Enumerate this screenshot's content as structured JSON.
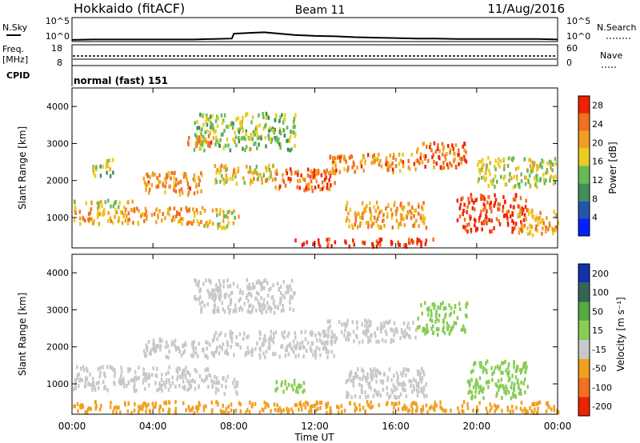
{
  "header": {
    "station": "Hokkaido (fitACF)",
    "beam": "Beam 11",
    "date": "11/Aug/2016"
  },
  "side_labels": {
    "nsky": "N.Sky",
    "freq_line1": "Freq.",
    "freq_line2": "[MHz]",
    "cpid": "CPID",
    "nsearch": "N.Search",
    "nave": "Nave"
  },
  "cpid_text": "normal (fast) 151",
  "chart_data": [
    {
      "type": "line",
      "panel": "noise",
      "left_ticks": [
        "10^5",
        "10^0"
      ],
      "right_ticks": [
        "10^5",
        "10^0"
      ],
      "left_label": "N.Sky",
      "right_label": "N.Search",
      "x_range_hours": [
        0,
        24
      ],
      "y_range_log10": [
        0,
        5
      ],
      "series": [
        {
          "name": "N.Sky",
          "x_hours": [
            0,
            1,
            2,
            3,
            4,
            5,
            6,
            7,
            7.9,
            8,
            8.5,
            9,
            9.5,
            10,
            10.5,
            11,
            12,
            13,
            14,
            15,
            16,
            17,
            18,
            19,
            20,
            21,
            22,
            23,
            24
          ],
          "log10_values": [
            0.2,
            0.3,
            0.3,
            0.3,
            0.3,
            0.3,
            0.3,
            0.4,
            0.5,
            1.6,
            1.7,
            1.8,
            1.9,
            1.7,
            1.5,
            1.3,
            1.1,
            1.0,
            0.8,
            0.7,
            0.6,
            0.5,
            0.5,
            0.4,
            0.4,
            0.4,
            0.4,
            0.4,
            0.3
          ]
        }
      ]
    },
    {
      "type": "line",
      "panel": "frequency",
      "left_ticks": [
        "18",
        "8"
      ],
      "right_ticks": [
        "60",
        "0"
      ],
      "left_label": "Freq. [MHz]",
      "right_label": "Nave",
      "x_range_hours": [
        0,
        24
      ],
      "freq_mhz_constant": 10.5,
      "nave_constant": 45
    },
    {
      "type": "heatmap",
      "panel": "power",
      "ylabel": "Slant Range [km]",
      "y_ticks": [
        1000,
        2000,
        3000,
        4000
      ],
      "ylim_km": [
        180,
        4500
      ],
      "xlim_hours": [
        0,
        24
      ],
      "colorbar_label": "Power [dB]",
      "colorbar_ticks": [
        4,
        8,
        12,
        16,
        20,
        24,
        28
      ],
      "colorbar_range": [
        0,
        30
      ],
      "colors": [
        "#0022ff",
        "#2255aa",
        "#3f8f55",
        "#66bb55",
        "#e8cc22",
        "#f0a020",
        "#f07020",
        "#ee2200"
      ],
      "regions": [
        {
          "t": [
            0.0,
            6.5
          ],
          "r": [
            800,
            1250
          ],
          "p": 21
        },
        {
          "t": [
            0.0,
            3.0
          ],
          "r": [
            1250,
            1450
          ],
          "p": 17
        },
        {
          "t": [
            6.5,
            8.2
          ],
          "r": [
            700,
            1200
          ],
          "p": 18
        },
        {
          "t": [
            1.0,
            2.0
          ],
          "r": [
            2100,
            2600
          ],
          "p": 15
        },
        {
          "t": [
            3.5,
            6.5
          ],
          "r": [
            1600,
            2200
          ],
          "p": 22
        },
        {
          "t": [
            7.0,
            10.0
          ],
          "r": [
            1900,
            2400
          ],
          "p": 18
        },
        {
          "t": [
            10.0,
            13.0
          ],
          "r": [
            1700,
            2300
          ],
          "p": 24
        },
        {
          "t": [
            12.5,
            17.0
          ],
          "r": [
            2200,
            2700
          ],
          "p": 22
        },
        {
          "t": [
            13.5,
            17.5
          ],
          "r": [
            700,
            1400
          ],
          "p": 21
        },
        {
          "t": [
            17.0,
            19.5
          ],
          "r": [
            2300,
            3000
          ],
          "p": 25
        },
        {
          "t": [
            19.0,
            22.5
          ],
          "r": [
            600,
            1600
          ],
          "p": 27
        },
        {
          "t": [
            22.0,
            24.0
          ],
          "r": [
            500,
            1200
          ],
          "p": 20
        },
        {
          "t": [
            11.0,
            18.0
          ],
          "r": [
            200,
            400
          ],
          "p": 29
        },
        {
          "t": [
            6.0,
            11.0
          ],
          "r": [
            2800,
            3800
          ],
          "p": 14
        },
        {
          "t": [
            5.5,
            7.0
          ],
          "r": [
            2900,
            3200
          ],
          "p": 22
        },
        {
          "t": [
            20.0,
            24.0
          ],
          "r": [
            1800,
            2600
          ],
          "p": 16
        }
      ]
    },
    {
      "type": "heatmap",
      "panel": "velocity",
      "ylabel": "Slant Range [km]",
      "xlabel": "Time UT",
      "x_tick_labels": [
        "00:00",
        "04:00",
        "08:00",
        "12:00",
        "16:00",
        "20:00",
        "00:00"
      ],
      "y_ticks": [
        1000,
        2000,
        3000,
        4000
      ],
      "ylim_km": [
        180,
        4500
      ],
      "xlim_hours": [
        0,
        24
      ],
      "colorbar_label": "Velocity [m s⁻¹]",
      "colorbar_ticks": [
        "200",
        "100",
        "50",
        "15",
        "-15",
        "-50",
        "-100",
        "-200"
      ],
      "colors": [
        "#1133aa",
        "#336655",
        "#55aa44",
        "#88cc55",
        "#c8c8c8",
        "#f0a020",
        "#f07020",
        "#ee2200"
      ],
      "regions": [
        {
          "t": [
            0.0,
            7.0
          ],
          "r": [
            800,
            1450
          ],
          "v": 0
        },
        {
          "t": [
            7.0,
            8.2
          ],
          "r": [
            700,
            1200
          ],
          "v": 0
        },
        {
          "t": [
            3.5,
            7.0
          ],
          "r": [
            1700,
            2200
          ],
          "v": 0
        },
        {
          "t": [
            7.0,
            13.0
          ],
          "r": [
            1700,
            2400
          ],
          "v": 0
        },
        {
          "t": [
            12.5,
            17.0
          ],
          "r": [
            2100,
            2700
          ],
          "v": 0
        },
        {
          "t": [
            17.0,
            19.5
          ],
          "r": [
            2300,
            3200
          ],
          "v": 45
        },
        {
          "t": [
            19.5,
            22.5
          ],
          "r": [
            600,
            1600
          ],
          "v": 20
        },
        {
          "t": [
            13.5,
            17.5
          ],
          "r": [
            600,
            1400
          ],
          "v": 0
        },
        {
          "t": [
            10.0,
            11.5
          ],
          "r": [
            700,
            1100
          ],
          "v": 45
        },
        {
          "t": [
            0.0,
            24.0
          ],
          "r": [
            200,
            500
          ],
          "v": -40
        },
        {
          "t": [
            6.0,
            11.0
          ],
          "r": [
            2900,
            3800
          ],
          "v": 0
        }
      ]
    }
  ]
}
